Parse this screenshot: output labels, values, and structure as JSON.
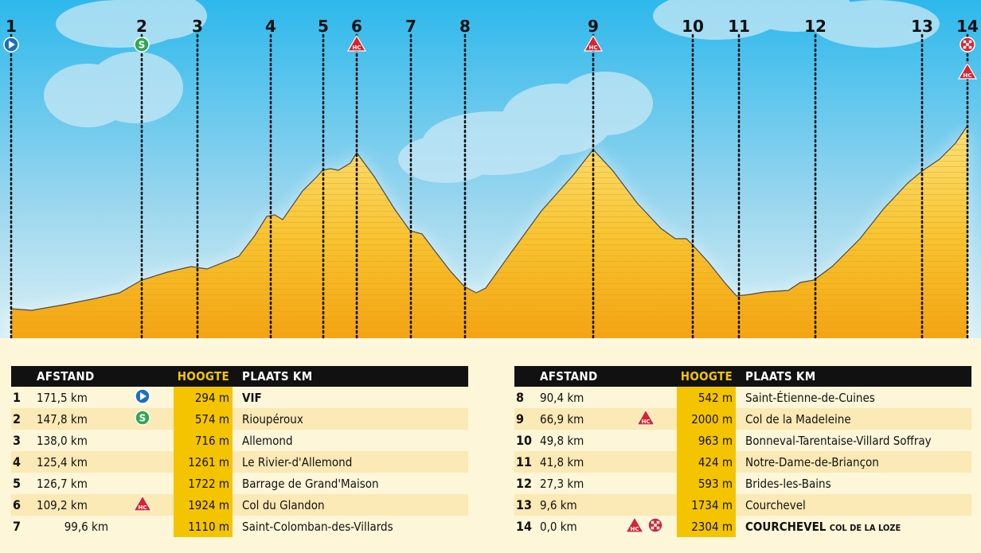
{
  "km_markers": [
    "1",
    "2",
    "3",
    "4",
    "5",
    "6",
    "7",
    "8",
    "9",
    "10",
    "11",
    "12",
    "13",
    "14"
  ],
  "headers": {
    "afstand": "AFSTAND",
    "hoogte": "HOOGTE",
    "plaats": "PLAATS KM"
  },
  "rows_left": [
    {
      "n": "1",
      "dist": "171,5 km",
      "icon": "start",
      "h": "294 m",
      "place": "VIF",
      "bold": true
    },
    {
      "n": "2",
      "dist": "147,8 km",
      "icon": "sprint",
      "h": "574 m",
      "place": "Rioupéroux"
    },
    {
      "n": "3",
      "dist": "138,0 km",
      "icon": "",
      "h": "716 m",
      "place": "Allemond"
    },
    {
      "n": "4",
      "dist": "125,4 km",
      "icon": "",
      "h": "1261 m",
      "place": "Le Rivier-d'Allemond"
    },
    {
      "n": "5",
      "dist": "126,7 km",
      "icon": "",
      "h": "1722 m",
      "place": "Barrage de Grand'Maison"
    },
    {
      "n": "6",
      "dist": "109,2 km",
      "icon": "hc",
      "h": "1924 m",
      "place": "Col du Glandon"
    },
    {
      "n": "7",
      "dist": "99,6 km",
      "icon": "",
      "h": "1110 m",
      "place": "Saint-Colomban-des-Villards"
    }
  ],
  "rows_right": [
    {
      "n": "8",
      "dist": "90,4 km",
      "icon": "",
      "h": "542 m",
      "place": "Saint-Étienne-de-Cuines"
    },
    {
      "n": "9",
      "dist": "66,9 km",
      "icon": "hc",
      "h": "2000 m",
      "place": "Col de la Madeleine"
    },
    {
      "n": "10",
      "dist": "49,8 km",
      "icon": "",
      "h": "963 m",
      "place": "Bonneval-Tarentaise-Villard Soffray"
    },
    {
      "n": "11",
      "dist": "41,8 km",
      "icon": "",
      "h": "424 m",
      "place": "Notre-Dame-de-Briançon"
    },
    {
      "n": "12",
      "dist": "27,3 km",
      "icon": "",
      "h": "593 m",
      "place": "Brides-les-Bains"
    },
    {
      "n": "13",
      "dist": "9,6 km",
      "icon": "",
      "h": "1734 m",
      "place": "Courchevel"
    },
    {
      "n": "14",
      "dist": "0,0 km",
      "icon": "hc-finish",
      "h": "2304 m",
      "place": "COURCHEVEL",
      "place_sub": "COL DE LA LOZE",
      "bold": true
    }
  ],
  "icon_labels": {
    "sprint": "S",
    "hc": "HC"
  },
  "colors": {
    "sky_top": "#2db8ec",
    "fill_top": "#f9d34a",
    "fill_bottom": "#f5a612",
    "highlight": "#f5c400",
    "hc_red": "#d9232d",
    "start_blue": "#1b6fc2",
    "sprint_green": "#2fa84f"
  }
}
